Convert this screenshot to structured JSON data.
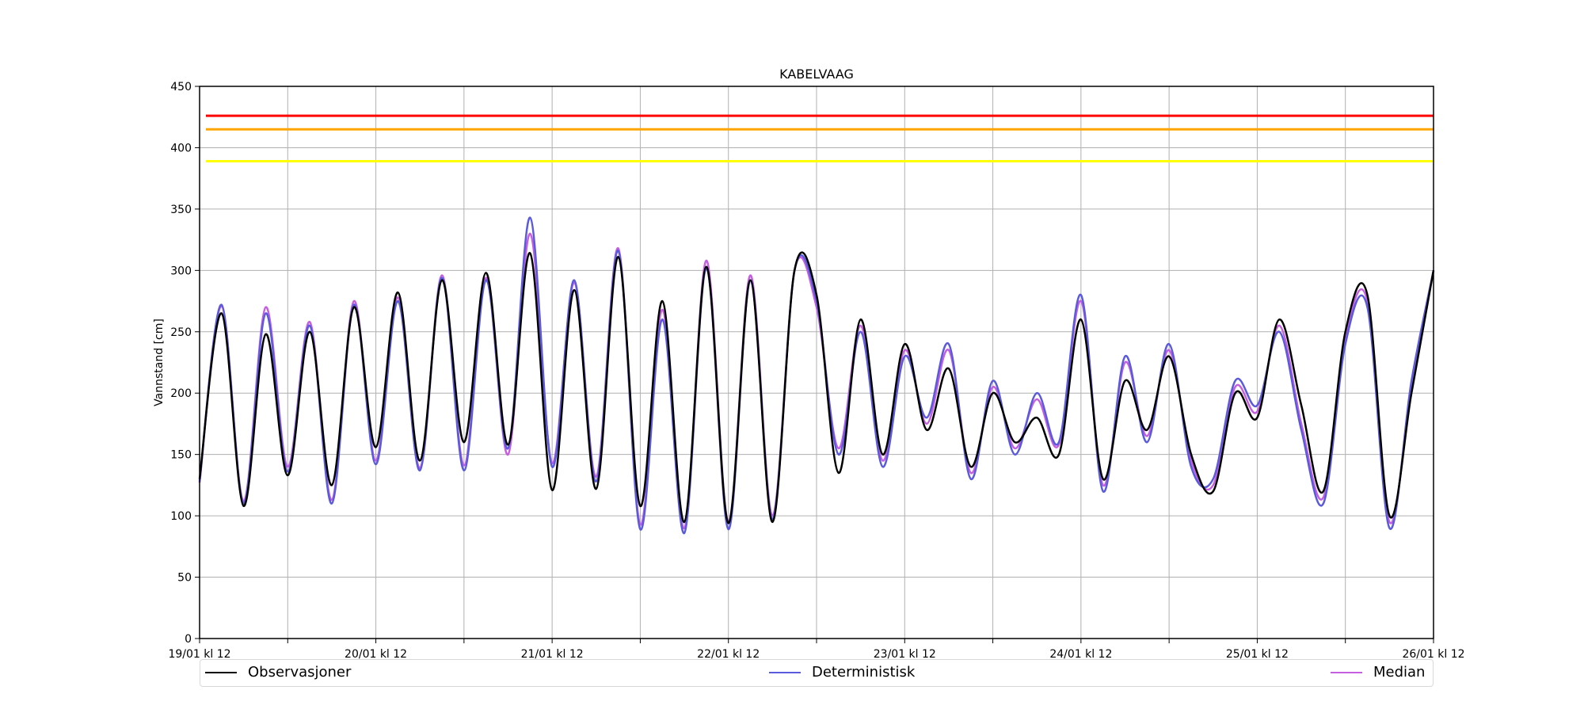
{
  "chart_data": {
    "type": "line",
    "title": "KABELVAAG",
    "xlabel": "",
    "ylabel": "Vannstand [cm]",
    "ylim": [
      0,
      450
    ],
    "yticks": [
      0,
      50,
      100,
      150,
      200,
      250,
      300,
      350,
      400,
      450
    ],
    "x_range_hours": [
      0,
      168
    ],
    "xtick_labels": [
      "19/01 kl 12",
      "20/01 kl 12",
      "21/01 kl 12",
      "22/01 kl 12",
      "23/01 kl 12",
      "24/01 kl 12",
      "25/01 kl 12",
      "26/01 kl 12"
    ],
    "grid": true,
    "legend_position": "bottom",
    "threshold_lines": [
      {
        "value": 426,
        "color": "#ff0000"
      },
      {
        "value": 415,
        "color": "#ffa500"
      },
      {
        "value": 389,
        "color": "#ffff00"
      }
    ],
    "series": [
      {
        "name": "Observasjoner",
        "color": "#000000",
        "x": [
          0,
          3,
          6,
          9,
          12,
          15,
          18,
          21,
          24,
          27,
          30,
          33,
          36,
          39,
          42,
          45,
          48,
          51,
          54,
          57,
          60,
          63,
          66,
          69,
          72,
          75,
          78,
          81,
          84,
          87,
          90,
          93,
          96,
          99,
          102,
          105,
          108,
          111,
          114,
          117,
          120,
          123,
          126,
          129,
          132,
          135,
          138,
          141,
          144,
          147,
          150,
          153,
          156,
          159,
          162,
          165,
          168
        ],
        "y": [
          130,
          265,
          108,
          248,
          133,
          250,
          125,
          270,
          156,
          282,
          145,
          292,
          160,
          298,
          158,
          314,
          121,
          284,
          122,
          311,
          108,
          275,
          95,
          303,
          94,
          292,
          95,
          300,
          280,
          135,
          260,
          150,
          240,
          170,
          220,
          140,
          200,
          160,
          180,
          150,
          260,
          130,
          210,
          170,
          230,
          150,
          120,
          200,
          180,
          260,
          190,
          120,
          250,
          280,
          100,
          200,
          300
        ]
      },
      {
        "name": "Deterministisk",
        "color": "#5a5adc",
        "x": [
          0,
          3,
          6,
          9,
          12,
          15,
          18,
          21,
          24,
          27,
          30,
          33,
          36,
          39,
          42,
          45,
          48,
          51,
          54,
          57,
          60,
          63,
          66,
          69,
          72,
          75,
          78,
          81,
          84,
          87,
          90,
          93,
          96,
          99,
          102,
          105,
          108,
          111,
          114,
          117,
          120,
          123,
          126,
          129,
          132,
          135,
          138,
          141,
          144,
          147,
          150,
          153,
          156,
          159,
          162,
          165,
          168
        ],
        "y": [
          128,
          272,
          110,
          265,
          136,
          255,
          110,
          272,
          142,
          275,
          137,
          294,
          137,
          292,
          155,
          343,
          140,
          292,
          128,
          316,
          89,
          260,
          86,
          302,
          89,
          292,
          97,
          300,
          275,
          150,
          250,
          140,
          230,
          180,
          240,
          130,
          210,
          150,
          200,
          160,
          280,
          120,
          230,
          160,
          240,
          140,
          130,
          210,
          190,
          250,
          170,
          110,
          240,
          270,
          90,
          210,
          300
        ]
      },
      {
        "name": "Median",
        "color": "#c65ee0",
        "x": [
          0,
          3,
          6,
          9,
          12,
          15,
          18,
          21,
          24,
          27,
          30,
          33,
          36,
          39,
          42,
          45,
          48,
          51,
          54,
          57,
          60,
          63,
          66,
          69,
          72,
          75,
          78,
          81,
          84,
          87,
          90,
          93,
          96,
          99,
          102,
          105,
          108,
          111,
          114,
          117,
          120,
          123,
          126,
          129,
          132,
          135,
          138,
          141,
          144,
          147,
          150,
          153,
          156,
          159,
          162,
          165,
          168
        ],
        "y": [
          127,
          271,
          112,
          270,
          140,
          258,
          113,
          275,
          145,
          278,
          139,
          296,
          141,
          294,
          150,
          330,
          143,
          290,
          132,
          318,
          93,
          268,
          90,
          308,
          95,
          296,
          100,
          300,
          270,
          155,
          255,
          145,
          235,
          175,
          235,
          135,
          205,
          155,
          195,
          158,
          275,
          125,
          225,
          165,
          235,
          145,
          125,
          205,
          185,
          255,
          175,
          115,
          245,
          275,
          95,
          205,
          300
        ]
      }
    ]
  },
  "legend": {
    "obs_label": "Observasjoner",
    "det_label": "Deterministisk",
    "med_label": "Median"
  }
}
